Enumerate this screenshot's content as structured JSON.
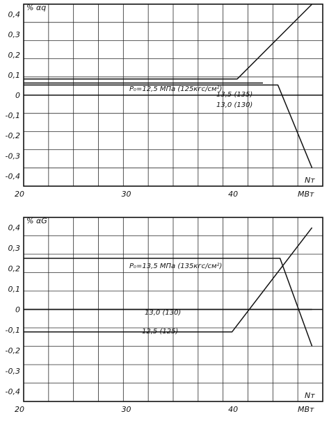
{
  "chart_data": [
    {
      "type": "line",
      "y_symbol": "% αq",
      "x_symbol": "Nт",
      "x_unit": "МВт",
      "xlim": [
        20,
        48
      ],
      "ylim": [
        -0.45,
        0.45
      ],
      "x_ticks": [
        "20",
        "30",
        "40"
      ],
      "y_ticks": [
        "0,4",
        "0,3",
        "0,2",
        "0,1",
        "0",
        "-0,1",
        "-0,2",
        "-0,3",
        "-0,4"
      ],
      "grid": true,
      "series": [
        {
          "name": "P₀=12,5 МПа (125кгс/см²)",
          "x": [
            20,
            40,
            47
          ],
          "y": [
            0.08,
            0.08,
            0.45
          ]
        },
        {
          "name": "13,5 (135)",
          "x": [
            20,
            42.4
          ],
          "y": [
            0.06,
            0.06
          ]
        },
        {
          "name": "13,0 (130)",
          "x": [
            20,
            43.8,
            47
          ],
          "y": [
            0.05,
            0.05,
            -0.36
          ]
        }
      ]
    },
    {
      "type": "line",
      "y_symbol": "% αG",
      "x_symbol": "Nт",
      "x_unit": "МВт",
      "xlim": [
        20,
        48
      ],
      "ylim": [
        -0.45,
        0.45
      ],
      "x_ticks": [
        "20",
        "30",
        "40"
      ],
      "y_ticks": [
        "0,4",
        "0,3",
        "0,2",
        "0,1",
        "0",
        "-0,1",
        "-0,2",
        "-0,3",
        "-0,4"
      ],
      "grid": true,
      "series": [
        {
          "name": "P₀=13,5 МПа (135кгс/см²)",
          "x": [
            20,
            44,
            47
          ],
          "y": [
            0.25,
            0.25,
            -0.18
          ]
        },
        {
          "name": "13,0 (130)",
          "x": [
            20,
            47
          ],
          "y": [
            0,
            0
          ]
        },
        {
          "name": "12,5 (125)",
          "x": [
            20,
            39.5,
            47
          ],
          "y": [
            -0.11,
            -0.11,
            0.4
          ]
        }
      ]
    }
  ]
}
